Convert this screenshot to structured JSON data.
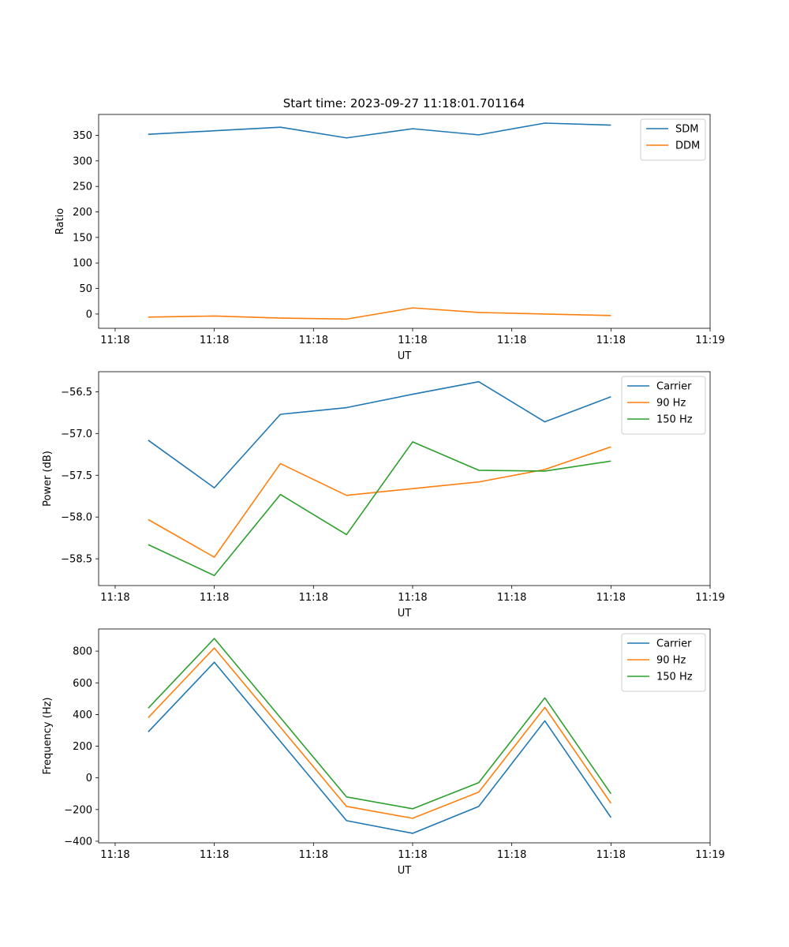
{
  "figure_title": "Start time: 2023-09-27 11:18:01.701164",
  "chart_data": [
    {
      "type": "line",
      "title": "Start time: 2023-09-27 11:18:01.701164",
      "xlabel": "UT",
      "ylabel": "Ratio",
      "x_index_range": [
        -0.75,
        8.5
      ],
      "x": [
        0,
        1,
        2,
        3,
        4,
        5,
        6,
        7
      ],
      "x_ticks": [
        -0.5,
        1,
        2.5,
        4,
        5.5,
        7,
        8.5
      ],
      "x_tick_labels": [
        "11:18",
        "11:18",
        "11:18",
        "11:18",
        "11:18",
        "11:18",
        "11:19"
      ],
      "ylim": [
        -28,
        391
      ],
      "y_ticks": [
        0,
        50,
        100,
        150,
        200,
        250,
        300,
        350
      ],
      "y_tick_labels": [
        "0",
        "50",
        "100",
        "150",
        "200",
        "250",
        "300",
        "350"
      ],
      "legend_position": "top-right",
      "series": [
        {
          "name": "SDM",
          "color": "#1f77b4",
          "values": [
            352,
            359,
            366,
            345,
            363,
            351,
            374,
            370
          ]
        },
        {
          "name": "DDM",
          "color": "#ff7f0e",
          "values": [
            -6,
            -4,
            -8,
            -10,
            12,
            3,
            0,
            -3
          ]
        }
      ]
    },
    {
      "type": "line",
      "title": "",
      "xlabel": "UT",
      "ylabel": "Power (dB)",
      "x_index_range": [
        -0.75,
        8.5
      ],
      "x": [
        0,
        1,
        2,
        3,
        4,
        5,
        6,
        7
      ],
      "x_ticks": [
        -0.5,
        1,
        2.5,
        4,
        5.5,
        7,
        8.5
      ],
      "x_tick_labels": [
        "11:18",
        "11:18",
        "11:18",
        "11:18",
        "11:18",
        "11:18",
        "11:19"
      ],
      "ylim": [
        -58.82,
        -56.26
      ],
      "y_ticks": [
        -58.5,
        -58.0,
        -57.5,
        -57.0,
        -56.5
      ],
      "y_tick_labels": [
        "−58.5",
        "−58.0",
        "−57.5",
        "−57.0",
        "−56.5"
      ],
      "legend_position": "top-right",
      "series": [
        {
          "name": "Carrier",
          "color": "#1f77b4",
          "values": [
            -57.08,
            -57.65,
            -56.77,
            -56.69,
            -56.53,
            -56.38,
            -56.86,
            -56.56
          ]
        },
        {
          "name": "90 Hz",
          "color": "#ff7f0e",
          "values": [
            -58.03,
            -58.48,
            -57.36,
            -57.74,
            -57.66,
            -57.58,
            -57.43,
            -57.16
          ]
        },
        {
          "name": "150 Hz",
          "color": "#2ca02c",
          "values": [
            -58.33,
            -58.7,
            -57.73,
            -58.21,
            -57.1,
            -57.44,
            -57.45,
            -57.33
          ]
        }
      ]
    },
    {
      "type": "line",
      "title": "",
      "xlabel": "UT",
      "ylabel": "Frequency (Hz)",
      "x_index_range": [
        -0.75,
        8.5
      ],
      "x": [
        0,
        1,
        2,
        3,
        4,
        5,
        6,
        7
      ],
      "x_ticks": [
        -0.5,
        1,
        2.5,
        4,
        5.5,
        7,
        8.5
      ],
      "x_tick_labels": [
        "11:18",
        "11:18",
        "11:18",
        "11:18",
        "11:18",
        "11:18",
        "11:19"
      ],
      "ylim": [
        -410,
        940
      ],
      "y_ticks": [
        -400,
        -200,
        0,
        200,
        400,
        600,
        800
      ],
      "y_tick_labels": [
        "−400",
        "−200",
        "0",
        "200",
        "400",
        "600",
        "800"
      ],
      "legend_position": "top-right",
      "series": [
        {
          "name": "Carrier",
          "color": "#1f77b4",
          "values": [
            290,
            730,
            230,
            -270,
            -350,
            -180,
            360,
            -250
          ]
        },
        {
          "name": "90 Hz",
          "color": "#ff7f0e",
          "values": [
            380,
            820,
            320,
            -180,
            -255,
            -90,
            445,
            -160
          ]
        },
        {
          "name": "150 Hz",
          "color": "#2ca02c",
          "values": [
            440,
            880,
            380,
            -120,
            -195,
            -30,
            505,
            -100
          ]
        }
      ]
    }
  ]
}
